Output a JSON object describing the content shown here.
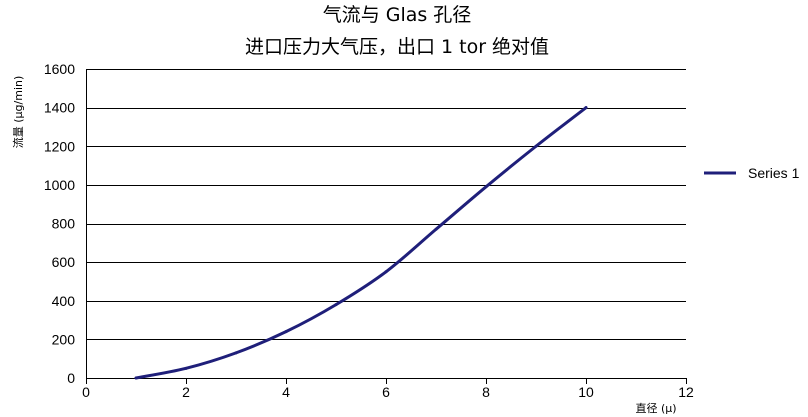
{
  "chart_data": {
    "type": "line",
    "title": "气流与 Glas 孔径",
    "subtitle": "进口压力大气压，出口 1 tor 绝对值",
    "xlabel": "直径 (µ)",
    "ylabel": "流量 (µg/min)",
    "xlim": [
      0,
      12
    ],
    "ylim": [
      0,
      1600
    ],
    "x_ticks": [
      "0",
      "2",
      "4",
      "6",
      "8",
      "10",
      "12"
    ],
    "y_ticks": [
      "0",
      "200",
      "400",
      "600",
      "800",
      "1000",
      "1200",
      "1400",
      "1600"
    ],
    "grid": "horizontal",
    "legend_position": "right",
    "series": [
      {
        "name": "Series 1",
        "color": "#1f1f7a",
        "x": [
          1,
          2,
          3,
          4,
          5,
          6,
          7,
          8,
          9,
          10
        ],
        "y": [
          0,
          50,
          130,
          240,
          380,
          550,
          770,
          990,
          1200,
          1400
        ]
      }
    ]
  }
}
